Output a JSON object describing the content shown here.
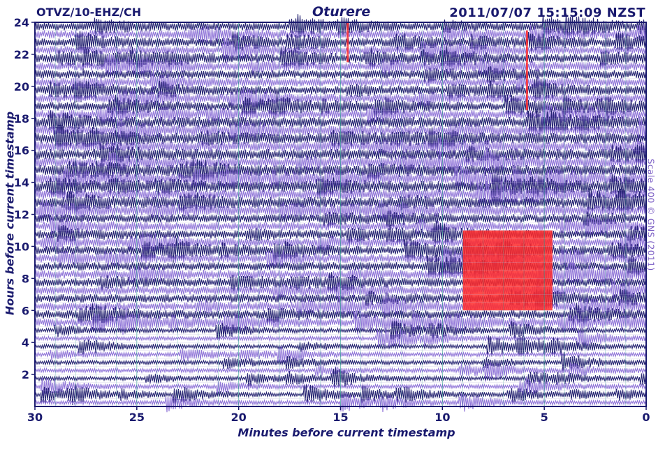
{
  "header": {
    "station": "OTVZ/10-EHZ/CH",
    "title": "Oturere",
    "timestamp": "2011/07/07 15:15:09 NZST"
  },
  "colors": {
    "trace_dark": "#1c1a6b",
    "trace_light": "#8b6fd6",
    "highlight": "#ff2a2a",
    "frame": "#1a1a6e",
    "gridline": "#2a9c8c"
  },
  "chart_data": {
    "type": "helicorder",
    "xlabel": "Minutes before current timestamp",
    "ylabel": "Hours before current timestamp",
    "scale_note": "Scale 400 © GNS (2011)",
    "xlim": [
      30,
      0
    ],
    "ylim": [
      0,
      24
    ],
    "x_ticks": [
      30,
      25,
      20,
      15,
      10,
      5,
      0
    ],
    "x_tick_labels": [
      "30",
      "25",
      "20",
      "15",
      "10",
      "5",
      "0"
    ],
    "y_ticks": [
      2,
      4,
      6,
      8,
      10,
      12,
      14,
      16,
      18,
      20,
      22,
      24
    ],
    "y_tick_labels": [
      "2",
      "4",
      "6",
      "8",
      "10",
      "12",
      "14",
      "16",
      "18",
      "20",
      "22",
      "24"
    ],
    "trace_rows": 48,
    "trace_colors": [
      "trace_dark",
      "trace_light"
    ],
    "events": [
      {
        "label": "event-1",
        "x_start": 9.0,
        "x_end": 4.6,
        "y_start": 6.0,
        "y_end": 11.0
      },
      {
        "label": "spike-1",
        "x_start": 14.7,
        "x_end": 14.6,
        "y_start": 21.5,
        "y_end": 24.0
      },
      {
        "label": "spike-2",
        "x_start": 5.9,
        "x_end": 5.8,
        "y_start": 18.5,
        "y_end": 23.5
      }
    ],
    "grid": true
  }
}
